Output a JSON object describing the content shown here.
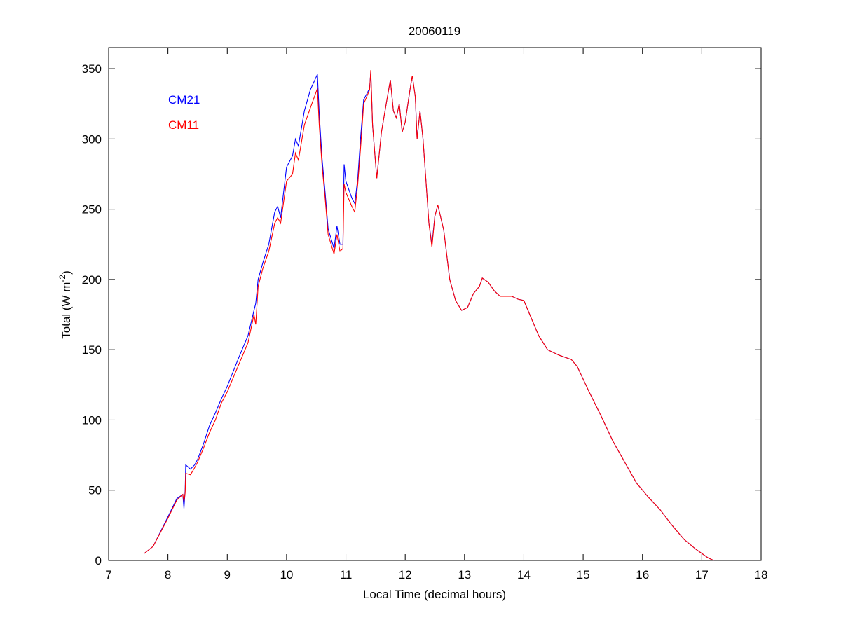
{
  "chart_data": {
    "type": "line",
    "title": "20060119",
    "xlabel": "Local Time (decimal hours)",
    "ylabel": "Total (W m-2)",
    "ylabel_parts": {
      "main": "Total (W m",
      "sup": "-2",
      "end": ")"
    },
    "xlim": [
      7,
      18
    ],
    "ylim": [
      0,
      365
    ],
    "xticks": [
      7,
      8,
      9,
      10,
      11,
      12,
      13,
      14,
      15,
      16,
      17,
      18
    ],
    "yticks": [
      0,
      50,
      100,
      150,
      200,
      250,
      300,
      350
    ],
    "grid": false,
    "legend_placement": "top-left",
    "series": [
      {
        "name": "CM21",
        "color": "#0000ff",
        "x": [
          7.6,
          7.75,
          8.0,
          8.15,
          8.25,
          8.27,
          8.29,
          8.3,
          8.38,
          8.45,
          8.5,
          8.6,
          8.7,
          8.8,
          8.9,
          9.0,
          9.2,
          9.35,
          9.45,
          9.48,
          9.52,
          9.6,
          9.7,
          9.8,
          9.85,
          9.9,
          10.0,
          10.1,
          10.15,
          10.2,
          10.3,
          10.4,
          10.52,
          10.55,
          10.6,
          10.65,
          10.7,
          10.8,
          10.85,
          10.9,
          10.95,
          10.97,
          11.0,
          11.1,
          11.15,
          11.2,
          11.25,
          11.3,
          11.35,
          11.4,
          11.42,
          11.45,
          11.52,
          11.6,
          11.7,
          11.75,
          11.8,
          11.85,
          11.9,
          11.95,
          12.0,
          12.08,
          12.12,
          12.17,
          12.2,
          12.25,
          12.3,
          12.35,
          12.4,
          12.45,
          12.5,
          12.55,
          12.65,
          12.75,
          12.85,
          12.95,
          13.05,
          13.15,
          13.25,
          13.3,
          13.4,
          13.5,
          13.6,
          13.8,
          13.9,
          14.0,
          14.1,
          14.25,
          14.4,
          14.6,
          14.8,
          14.9,
          15.1,
          15.3,
          15.5,
          15.7,
          15.9,
          16.1,
          16.3,
          16.5,
          16.7,
          16.9,
          17.1,
          17.2
        ],
        "y": [
          5,
          10,
          31,
          44,
          47,
          37,
          50,
          68,
          65,
          68,
          72,
          83,
          96,
          105,
          115,
          124,
          145,
          160,
          178,
          183,
          200,
          212,
          225,
          248,
          252,
          244,
          280,
          288,
          300,
          295,
          320,
          335,
          346,
          318,
          285,
          262,
          236,
          222,
          238,
          225,
          225,
          282,
          270,
          258,
          254,
          272,
          302,
          328,
          332,
          336,
          348,
          310,
          272,
          305,
          330,
          342,
          320,
          315,
          325,
          305,
          312,
          335,
          345,
          330,
          300,
          320,
          300,
          270,
          240,
          225,
          245,
          253,
          235,
          200,
          185,
          178,
          180,
          190,
          195,
          201,
          198,
          192,
          188,
          188,
          186,
          185,
          175,
          160,
          150,
          146,
          143,
          138,
          120,
          103,
          85,
          70,
          55,
          45,
          36,
          25,
          15,
          8,
          2,
          0
        ]
      },
      {
        "name": "CM11",
        "color": "#ff0000",
        "x": [
          7.6,
          7.75,
          8.0,
          8.15,
          8.25,
          8.27,
          8.29,
          8.3,
          8.38,
          8.45,
          8.5,
          8.6,
          8.7,
          8.8,
          8.9,
          9.0,
          9.2,
          9.35,
          9.45,
          9.48,
          9.52,
          9.6,
          9.7,
          9.8,
          9.85,
          9.9,
          10.0,
          10.1,
          10.15,
          10.2,
          10.3,
          10.4,
          10.52,
          10.55,
          10.6,
          10.65,
          10.7,
          10.8,
          10.85,
          10.9,
          10.95,
          10.97,
          11.0,
          11.1,
          11.15,
          11.2,
          11.25,
          11.3,
          11.35,
          11.4,
          11.42,
          11.45,
          11.52,
          11.6,
          11.7,
          11.75,
          11.8,
          11.85,
          11.9,
          11.95,
          12.0,
          12.08,
          12.12,
          12.17,
          12.2,
          12.25,
          12.3,
          12.35,
          12.4,
          12.45,
          12.5,
          12.55,
          12.65,
          12.75,
          12.85,
          12.95,
          13.05,
          13.15,
          13.25,
          13.3,
          13.4,
          13.5,
          13.6,
          13.8,
          13.9,
          14.0,
          14.1,
          14.25,
          14.4,
          14.6,
          14.8,
          14.9,
          15.1,
          15.3,
          15.5,
          15.7,
          15.9,
          16.1,
          16.3,
          16.5,
          16.7,
          16.9,
          17.1,
          17.2
        ],
        "y": [
          5,
          10,
          30,
          43,
          47,
          42,
          48,
          62,
          61,
          66,
          70,
          80,
          91,
          100,
          112,
          120,
          140,
          155,
          175,
          168,
          195,
          208,
          220,
          240,
          244,
          240,
          270,
          275,
          290,
          285,
          310,
          322,
          336,
          310,
          280,
          258,
          232,
          218,
          232,
          220,
          222,
          268,
          262,
          252,
          248,
          268,
          295,
          325,
          330,
          335,
          349,
          310,
          272,
          305,
          330,
          342,
          320,
          315,
          325,
          305,
          312,
          335,
          345,
          330,
          300,
          320,
          300,
          270,
          240,
          223,
          245,
          253,
          235,
          200,
          185,
          178,
          180,
          190,
          195,
          201,
          198,
          192,
          188,
          188,
          186,
          185,
          175,
          160,
          150,
          146,
          143,
          138,
          120,
          103,
          85,
          70,
          55,
          45,
          36,
          25,
          15,
          8,
          2,
          0
        ]
      }
    ]
  }
}
